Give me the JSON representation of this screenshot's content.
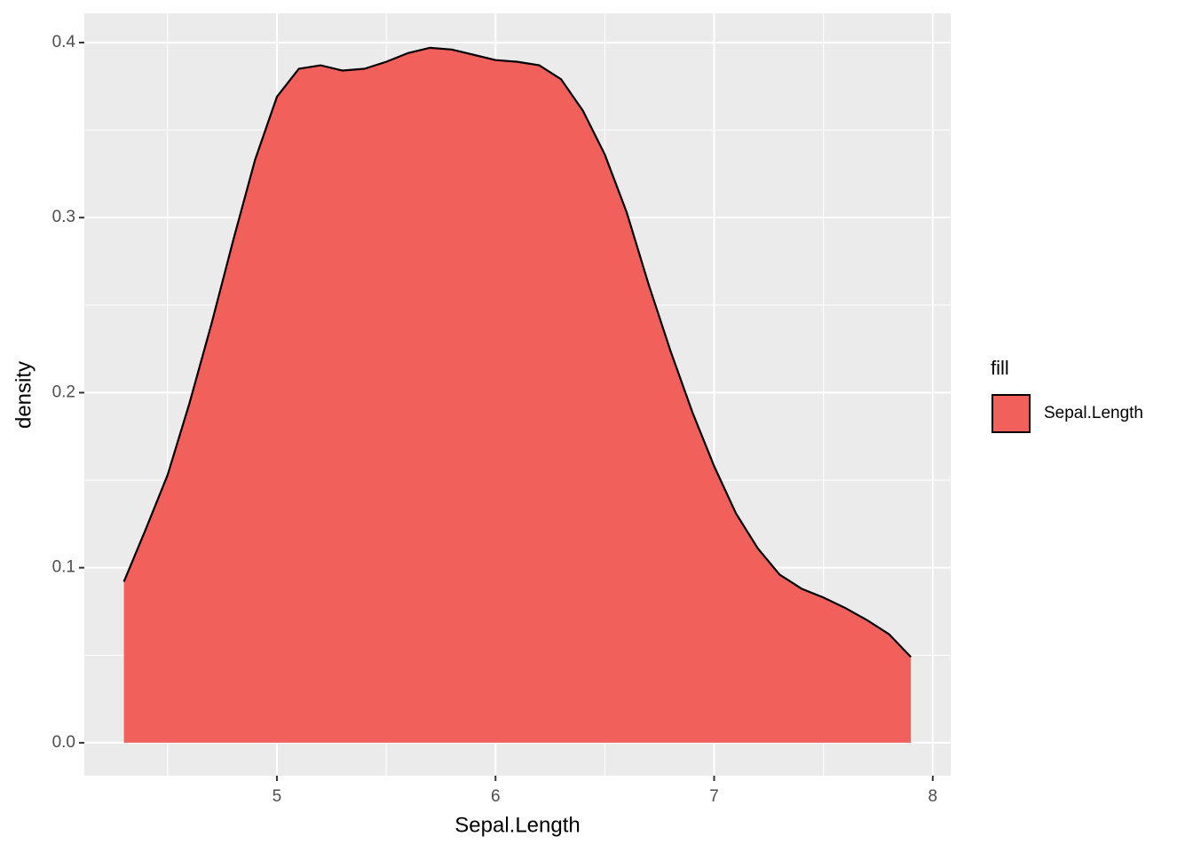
{
  "chart_data": {
    "type": "area",
    "x_label": "Sepal.Length",
    "y_label": "density",
    "x": [
      4.3,
      4.4,
      4.5,
      4.6,
      4.7,
      4.8,
      4.9,
      5.0,
      5.1,
      5.2,
      5.3,
      5.4,
      5.5,
      5.6,
      5.7,
      5.8,
      5.9,
      6.0,
      6.1,
      6.2,
      6.3,
      6.4,
      6.5,
      6.6,
      6.7,
      6.8,
      6.9,
      7.0,
      7.1,
      7.2,
      7.3,
      7.4,
      7.5,
      7.6,
      7.7,
      7.8,
      7.9
    ],
    "series": [
      {
        "name": "Sepal.Length",
        "color": "#F2605C",
        "values": [
          0.092,
          0.122,
          0.153,
          0.194,
          0.239,
          0.287,
          0.333,
          0.369,
          0.385,
          0.387,
          0.384,
          0.385,
          0.389,
          0.394,
          0.397,
          0.396,
          0.393,
          0.39,
          0.389,
          0.387,
          0.379,
          0.361,
          0.336,
          0.303,
          0.262,
          0.224,
          0.189,
          0.158,
          0.131,
          0.111,
          0.096,
          0.088,
          0.083,
          0.077,
          0.07,
          0.062,
          0.049
        ]
      }
    ],
    "legend_title": "fill",
    "xlim": [
      4.119,
      8.082
    ],
    "xticks": [
      5,
      6,
      7,
      8
    ],
    "ylim": [
      -0.0188,
      0.4167
    ],
    "yticks": [
      {
        "value": 0,
        "label": "0.0"
      },
      0.1,
      0.2,
      0.3,
      0.4
    ],
    "grid": true
  }
}
